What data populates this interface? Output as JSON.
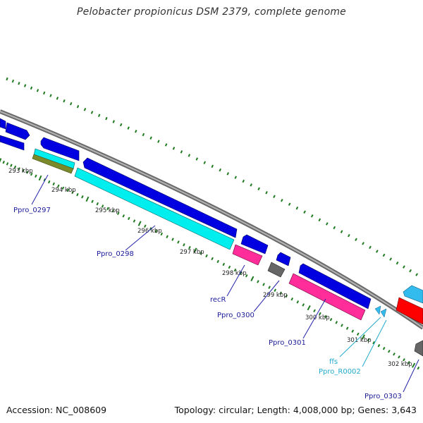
{
  "title": "Pelobacter propionicus DSM 2379, complete genome",
  "accession_label": "Accession: NC_008609",
  "summary_label": "Topology: circular; Length: 4,008,000 bp; Genes: 3,643",
  "colors": {
    "backbone": "#8a8a8a",
    "tick": "#1e7a1e",
    "cds": "#0000e0",
    "rrna": "#00eeee",
    "trna": "#33bbee",
    "pink": "#ff2d9a",
    "red": "#ff0000",
    "gray": "#666666",
    "olive": "#7a8a2a",
    "label_dark": "#1a1a99",
    "label_cyan": "#22aacc"
  },
  "scale_labels": [
    "293 kbp",
    "294 kbp",
    "295 kbp",
    "296 kbp",
    "297 kbp",
    "298 kbp",
    "299 kbp",
    "300 kbp",
    "301 kbp",
    "302 kbp"
  ],
  "gene_labels": [
    {
      "text": "Ppro_0297",
      "color": "dark"
    },
    {
      "text": "Ppro_0298",
      "color": "dark"
    },
    {
      "text": "recR",
      "color": "dark"
    },
    {
      "text": "Ppro_0300",
      "color": "dark"
    },
    {
      "text": "Ppro_0301",
      "color": "dark"
    },
    {
      "text": "ffs",
      "color": "cyan"
    },
    {
      "text": "Ppro_R0002",
      "color": "cyan"
    },
    {
      "text": "Ppro_0303",
      "color": "dark"
    }
  ]
}
